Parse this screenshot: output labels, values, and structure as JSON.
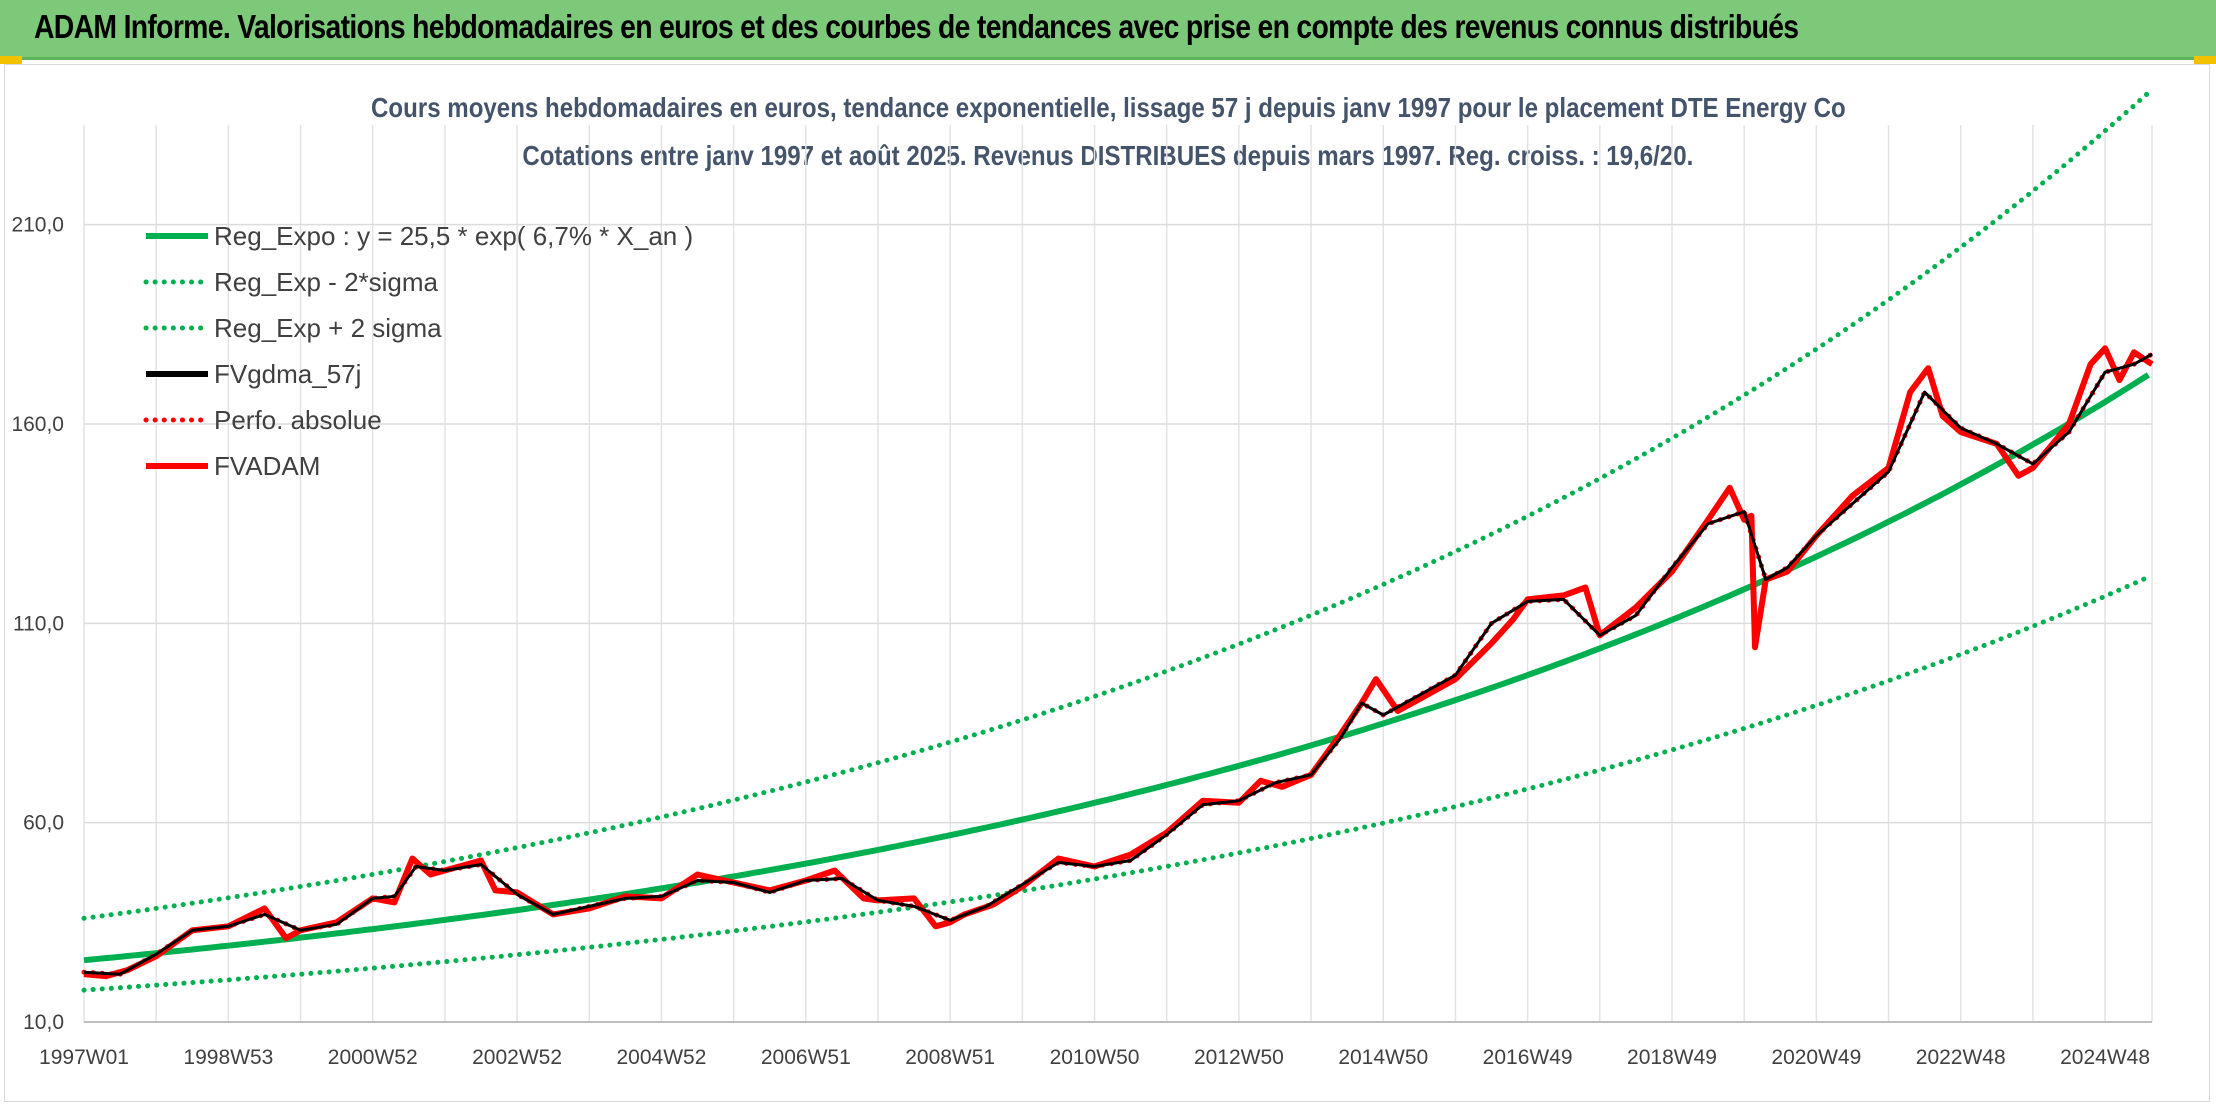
{
  "banner": {
    "title": "ADAM Informe. Valorisations hebdomadaires en euros et des courbes de tendances avec prise en compte des revenus connus distribués",
    "background": "#7dc97a"
  },
  "chart_data": {
    "type": "line",
    "title": "Cours moyens hebdomadaires en euros, tendance exponentielle, lissage 57 j depuis janv 1997 pour le placement DTE Energy Co",
    "subtitle": "Cotations entre janv 1997 et août 2025. Revenus DISTRIBUES depuis mars 1997. Reg. croiss. : 19,6/20.",
    "xlabel": "",
    "ylabel": "",
    "x_tick_labels": [
      "1997W01",
      "1998W53",
      "2000W52",
      "2002W52",
      "2004W52",
      "2006W51",
      "2008W51",
      "2010W50",
      "2012W50",
      "2014W50",
      "2016W49",
      "2018W49",
      "2020W49",
      "2022W48",
      "2024W48"
    ],
    "x_range_years": [
      1997.0,
      2025.65
    ],
    "y_ticks": [
      10,
      60,
      110,
      160,
      210
    ],
    "y_tick_labels": [
      "10,0",
      "60,0",
      "110,0",
      "160,0",
      "210,0"
    ],
    "ylim": [
      10,
      235
    ],
    "grid": true,
    "legend_position": "top-left",
    "colors": {
      "green": "#00b050",
      "black": "#000000",
      "red": "#ff0000"
    },
    "series": [
      {
        "name": "Reg_Expo : y = 25,5 * exp( 6,7% *  X_an )",
        "style": "solid",
        "color": "#00b050",
        "x": [
          1997,
          1999,
          2001,
          2003,
          2005,
          2007,
          2009,
          2011,
          2013,
          2015,
          2017,
          2019,
          2021,
          2023,
          2025.65
        ],
        "values": [
          25.5,
          29.2,
          33.4,
          38.1,
          43.6,
          49.8,
          57.0,
          65.1,
          74.5,
          85.1,
          97.3,
          111.2,
          127.1,
          145.3,
          172.9
        ]
      },
      {
        "name": "Reg_Exp - 2*sigma",
        "style": "dotted",
        "color": "#00b050",
        "x": [
          1997,
          1999,
          2001,
          2003,
          2005,
          2007,
          2009,
          2011,
          2013,
          2015,
          2017,
          2019,
          2021,
          2023,
          2025.65
        ],
        "values": [
          18.0,
          20.6,
          23.6,
          26.9,
          30.8,
          35.2,
          40.2,
          46.0,
          52.6,
          60.1,
          68.7,
          78.5,
          89.7,
          102.5,
          122.0
        ]
      },
      {
        "name": "Reg_Exp + 2 sigma",
        "style": "dotted",
        "color": "#00b050",
        "x": [
          1997,
          1999,
          2001,
          2003,
          2005,
          2007,
          2009,
          2011,
          2013,
          2015,
          2017,
          2019,
          2021,
          2023,
          2025.65
        ],
        "values": [
          36.0,
          41.2,
          47.1,
          53.8,
          61.5,
          70.3,
          80.4,
          91.9,
          105.0,
          120.1,
          137.3,
          156.9,
          179.4,
          205.1,
          243.9
        ]
      },
      {
        "name": "FVgdma_57j",
        "style": "solid",
        "color": "#000000",
        "x": [
          1997.0,
          1997.5,
          1998.0,
          1998.5,
          1999.0,
          1999.5,
          2000.0,
          2000.5,
          2001.0,
          2001.3,
          2001.6,
          2002.0,
          2002.5,
          2003.0,
          2003.5,
          2004.0,
          2004.5,
          2005.0,
          2005.5,
          2006.0,
          2006.5,
          2007.0,
          2007.5,
          2008.0,
          2008.5,
          2009.0,
          2009.5,
          2010.0,
          2010.5,
          2011.0,
          2011.5,
          2012.0,
          2012.5,
          2013.0,
          2013.5,
          2014.0,
          2014.4,
          2014.7,
          2015.0,
          2015.5,
          2016.0,
          2016.5,
          2017.0,
          2017.5,
          2018.0,
          2018.5,
          2019.0,
          2019.5,
          2020.0,
          2020.3,
          2020.6,
          2021.0,
          2021.5,
          2022.0,
          2022.5,
          2023.0,
          2023.5,
          2024.0,
          2024.5,
          2025.0,
          2025.4,
          2025.65
        ],
        "values": [
          22.5,
          22.0,
          27.0,
          33.0,
          34.0,
          37.0,
          33.0,
          34.5,
          41.0,
          41.5,
          49.0,
          48.0,
          49.5,
          42.0,
          37.0,
          39.0,
          41.0,
          41.5,
          45.5,
          45.0,
          42.5,
          45.5,
          46.0,
          40.5,
          39.0,
          35.5,
          39.0,
          44.5,
          50.0,
          49.0,
          50.5,
          57.0,
          64.5,
          65.5,
          70.0,
          72.0,
          81.0,
          90.0,
          87.0,
          92.0,
          97.0,
          110.0,
          115.5,
          116.0,
          107.0,
          112.0,
          124.0,
          135.0,
          138.0,
          121.0,
          124.0,
          132.0,
          140.0,
          148.0,
          168.0,
          159.0,
          155.0,
          150.0,
          158.0,
          173.0,
          175.0,
          177.5
        ]
      },
      {
        "name": "Perfo. absolue",
        "style": "dotted",
        "color": "#ff0000",
        "x": [
          1997.0,
          1997.5,
          1998.0,
          1998.5,
          1999.0,
          1999.5,
          2000.0,
          2000.5,
          2001.0,
          2001.3,
          2001.6,
          2002.0,
          2002.5,
          2003.0,
          2003.5,
          2004.0,
          2004.5,
          2005.0,
          2005.5,
          2006.0,
          2006.5,
          2007.0,
          2007.5,
          2008.0,
          2008.5,
          2009.0,
          2009.5,
          2010.0,
          2010.5,
          2011.0,
          2011.5,
          2012.0,
          2012.5,
          2013.0,
          2013.5,
          2014.0,
          2014.4,
          2014.7,
          2015.0,
          2015.5,
          2016.0,
          2016.5,
          2017.0,
          2017.5,
          2018.0,
          2018.5,
          2019.0,
          2019.5,
          2020.0,
          2020.3,
          2020.6,
          2021.0,
          2021.5,
          2022.0,
          2022.5,
          2023.0,
          2023.5,
          2024.0,
          2024.5,
          2025.0,
          2025.4,
          2025.65
        ],
        "values": [
          22.5,
          22.0,
          27.0,
          33.0,
          34.0,
          37.0,
          33.0,
          34.5,
          41.0,
          41.5,
          49.0,
          48.0,
          49.5,
          42.0,
          37.0,
          39.0,
          41.0,
          41.5,
          45.5,
          45.0,
          42.5,
          45.5,
          46.0,
          40.5,
          39.0,
          35.5,
          39.0,
          44.5,
          50.0,
          49.0,
          50.5,
          57.0,
          64.5,
          65.5,
          70.0,
          72.0,
          81.0,
          90.0,
          87.0,
          92.0,
          97.0,
          110.0,
          115.5,
          116.0,
          107.0,
          112.0,
          124.0,
          135.0,
          138.0,
          121.0,
          124.0,
          132.0,
          140.0,
          148.0,
          168.0,
          159.0,
          155.0,
          150.0,
          158.0,
          173.0,
          175.0,
          177.5
        ]
      },
      {
        "name": "FVADAM",
        "style": "solid",
        "color": "#ff0000",
        "x": [
          1997.0,
          1997.3,
          1997.6,
          1998.0,
          1998.5,
          1999.0,
          1999.5,
          1999.8,
          2000.0,
          2000.5,
          2001.0,
          2001.3,
          2001.55,
          2001.8,
          2002.0,
          2002.5,
          2002.7,
          2003.0,
          2003.5,
          2004.0,
          2004.5,
          2005.0,
          2005.5,
          2006.0,
          2006.5,
          2007.0,
          2007.4,
          2007.8,
          2008.0,
          2008.5,
          2008.8,
          2009.0,
          2009.2,
          2009.6,
          2010.0,
          2010.5,
          2011.0,
          2011.5,
          2012.0,
          2012.5,
          2013.0,
          2013.3,
          2013.6,
          2014.0,
          2014.4,
          2014.7,
          2014.9,
          2015.2,
          2015.5,
          2016.0,
          2016.5,
          2016.8,
          2017.0,
          2017.5,
          2017.8,
          2018.0,
          2018.5,
          2019.0,
          2019.5,
          2019.8,
          2020.0,
          2020.1,
          2020.15,
          2020.3,
          2020.6,
          2021.0,
          2021.5,
          2022.0,
          2022.3,
          2022.55,
          2022.75,
          2023.0,
          2023.5,
          2023.8,
          2024.0,
          2024.5,
          2024.8,
          2025.0,
          2025.2,
          2025.4,
          2025.65
        ],
        "values": [
          22.0,
          21.5,
          23.0,
          26.5,
          33.0,
          34.0,
          38.5,
          31.0,
          33.0,
          35.0,
          41.0,
          40.0,
          51.0,
          47.0,
          48.0,
          50.5,
          43.0,
          42.5,
          37.0,
          38.5,
          41.5,
          41.0,
          47.0,
          45.0,
          43.0,
          45.5,
          48.0,
          41.0,
          40.5,
          41.0,
          34.0,
          35.0,
          37.0,
          39.5,
          44.0,
          51.0,
          49.0,
          52.0,
          57.5,
          65.5,
          65.0,
          70.5,
          69.0,
          72.0,
          82.0,
          90.0,
          96.0,
          88.0,
          91.0,
          96.0,
          105.0,
          111.0,
          116.0,
          117.0,
          119.0,
          107.0,
          114.0,
          123.0,
          136.0,
          144.0,
          136.0,
          137.0,
          104.0,
          121.0,
          123.0,
          132.0,
          142.0,
          149.0,
          168.0,
          174.0,
          162.0,
          158.0,
          155.0,
          147.0,
          149.0,
          160.0,
          175.0,
          179.0,
          171.0,
          178.0,
          175.0
        ]
      }
    ]
  }
}
